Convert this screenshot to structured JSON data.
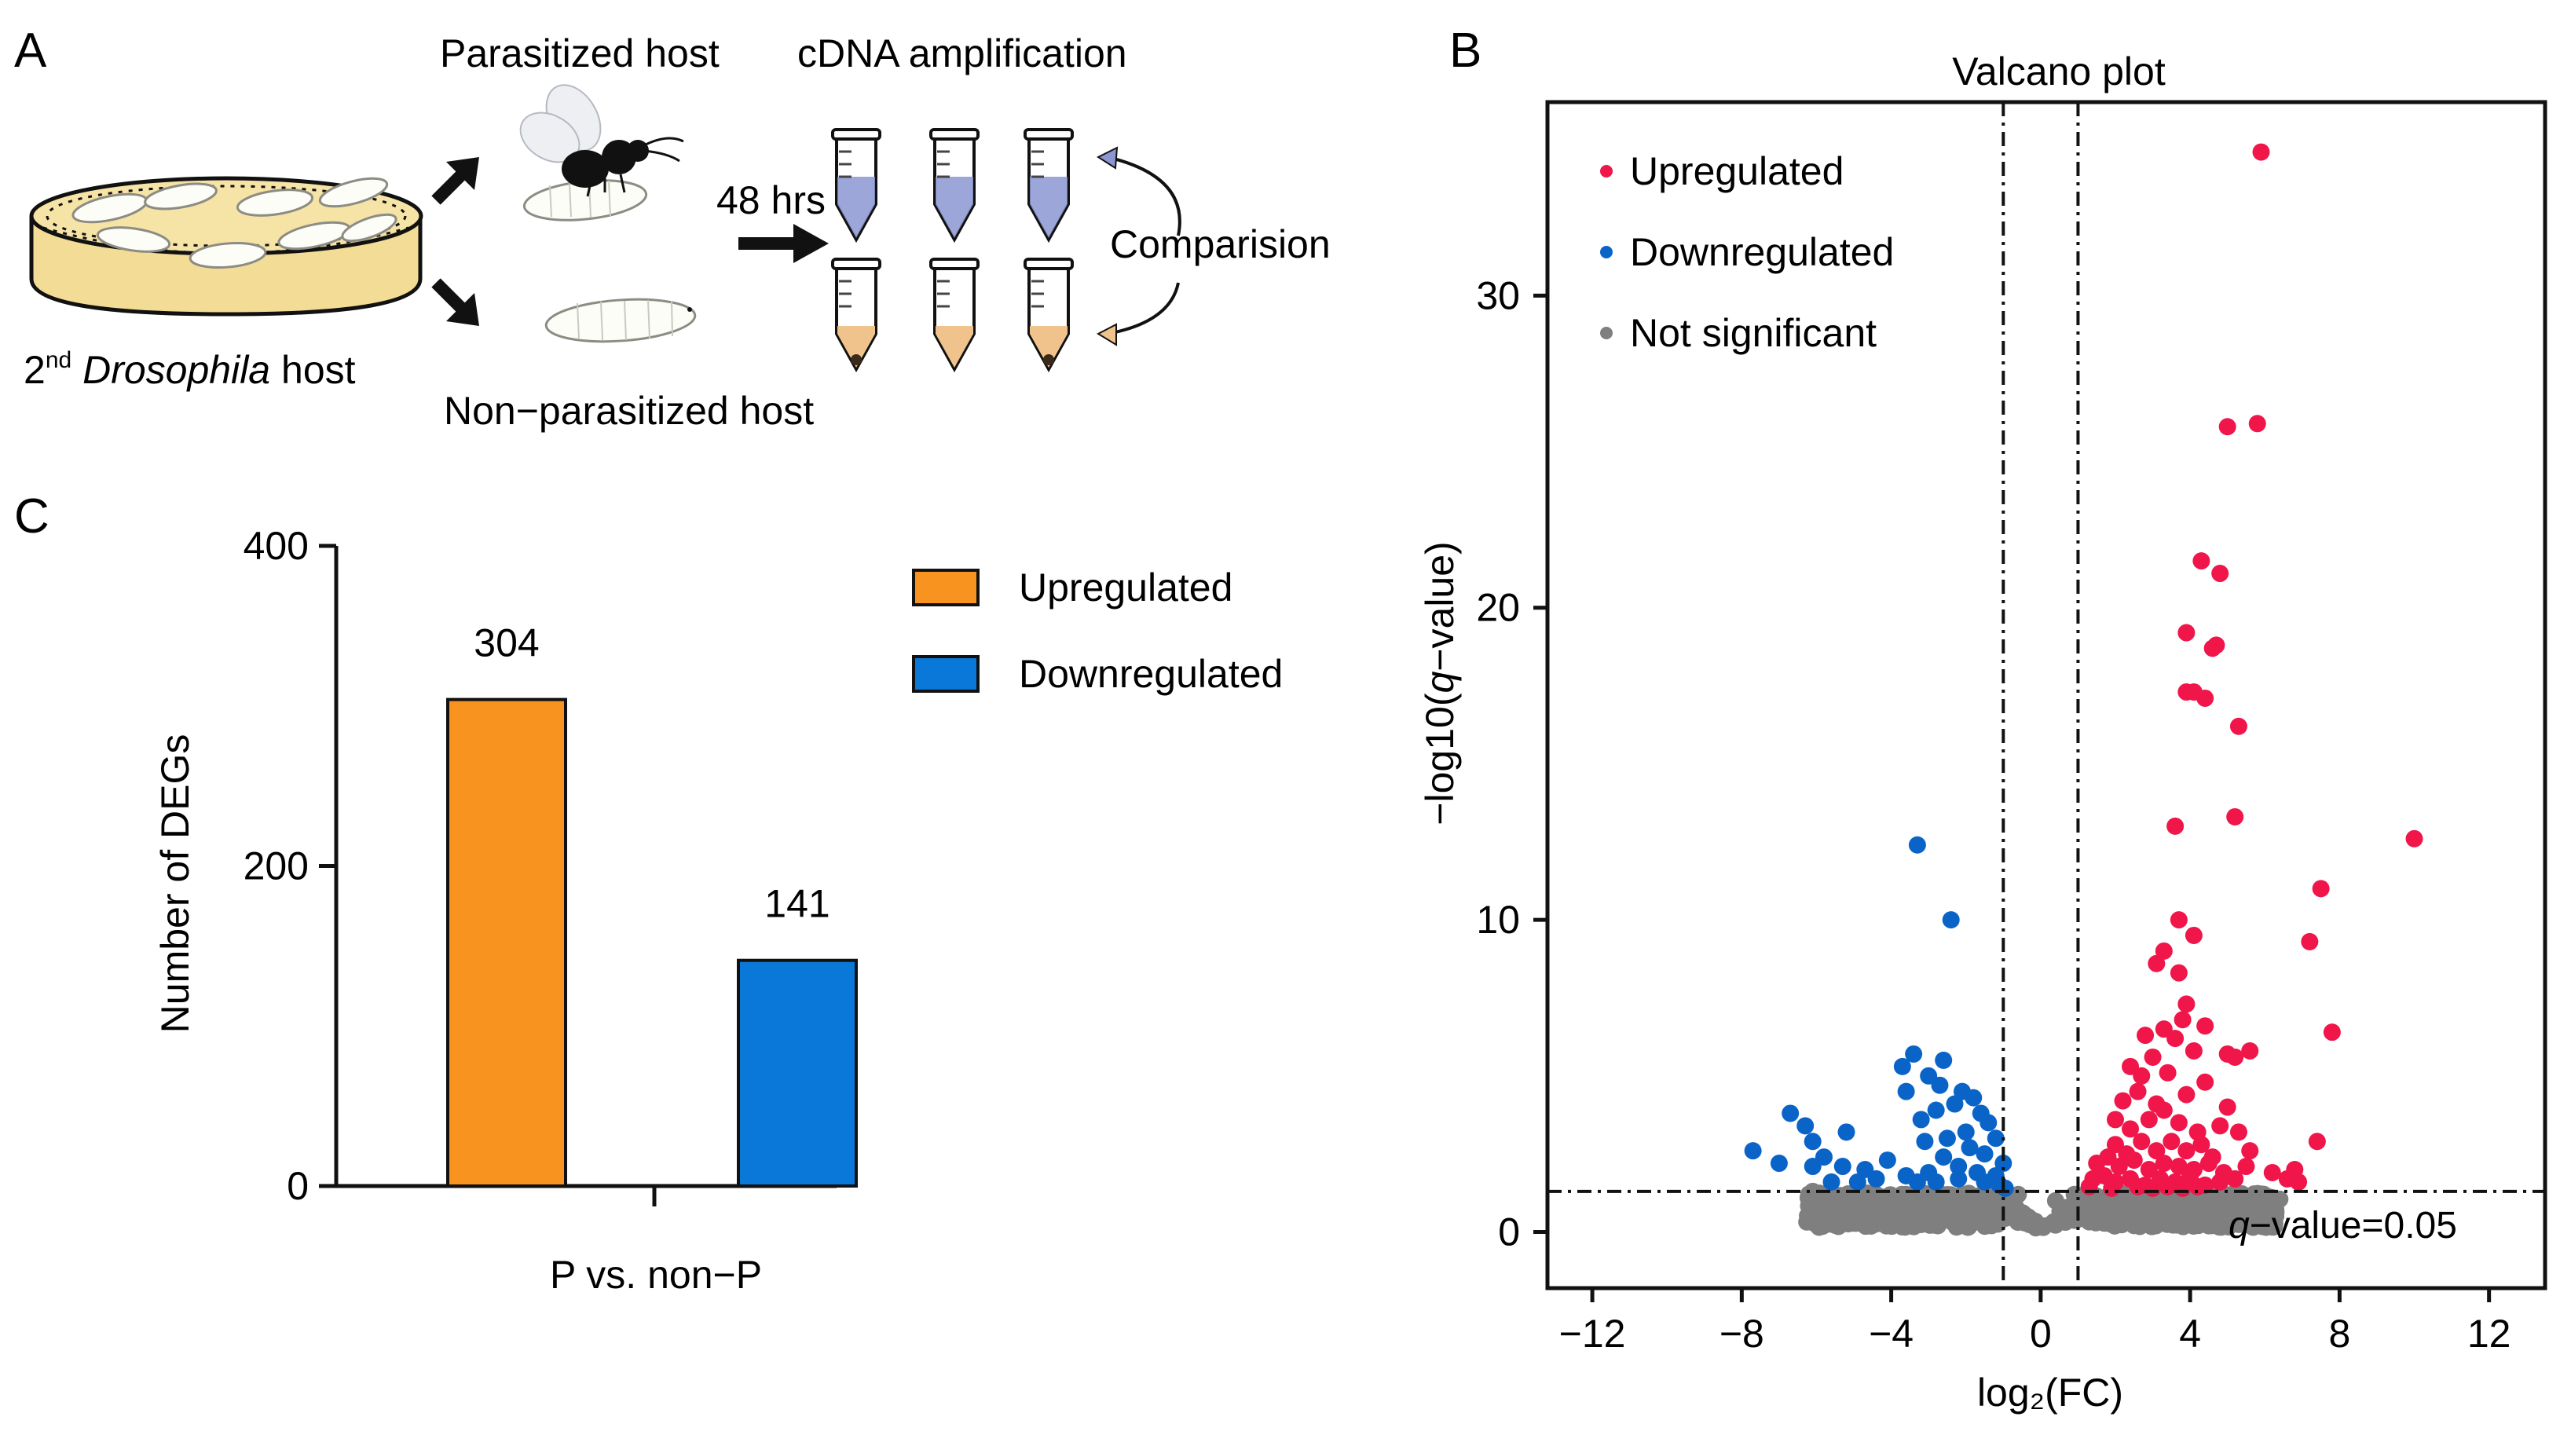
{
  "panel_a": {
    "label": "A",
    "parasitized_host": "Parasitized host",
    "cdna_amplification": "cDNA amplification",
    "duration": "48 hrs",
    "comparison": "Comparision",
    "host_prefix": "2",
    "host_superscript": "nd",
    "host_genus": "Drosophila",
    "host_suffix": "host",
    "non_parasitized_host": "Non−parasitized host"
  },
  "chart_data": [
    {
      "id": "panel-c",
      "panel_label": "C",
      "type": "bar",
      "title": "",
      "xlabel": "P vs. non−P",
      "ylabel": "Number of DEGs",
      "ylim": [
        0,
        400
      ],
      "yticks": [
        0,
        200,
        400
      ],
      "grid": false,
      "legend_position": "top-right",
      "categories": [
        "Upregulated",
        "Downregulated"
      ],
      "values": [
        304,
        141
      ],
      "colors": [
        "#F7931E",
        "#0A78D8"
      ],
      "data_labels": [
        "304",
        "141"
      ]
    },
    {
      "id": "panel-b",
      "panel_label": "B",
      "type": "scatter",
      "title": "Valcano plot",
      "xlabel": "log₂(FC)",
      "ylabel_prefix": "−log10(",
      "ylabel_italic": "q",
      "ylabel_suffix": "−value)",
      "xlim": [
        -13.2,
        13.5
      ],
      "ylim": [
        -1.8,
        36.2
      ],
      "xticks": [
        -12,
        -8,
        -4,
        0,
        4,
        8,
        12
      ],
      "xtick_labels": [
        "−12",
        "−8",
        "−4",
        "0",
        "4",
        "8",
        "12"
      ],
      "yticks": [
        0,
        10,
        20,
        30
      ],
      "grid": false,
      "legend_position": "top-left",
      "fc_thresholds": [
        -1,
        1
      ],
      "q_threshold_log": 1.3,
      "threshold_label_italic": "q",
      "threshold_label_rest": "−value=0.05",
      "series": [
        {
          "name": "Upregulated",
          "color": "#F0164A",
          "points": [
            [
              5.9,
              34.6
            ],
            [
              5.8,
              25.9
            ],
            [
              5.0,
              25.8
            ],
            [
              4.3,
              21.5
            ],
            [
              4.8,
              21.1
            ],
            [
              3.9,
              19.2
            ],
            [
              4.6,
              18.7
            ],
            [
              4.7,
              18.8
            ],
            [
              3.9,
              17.3
            ],
            [
              4.1,
              17.3
            ],
            [
              4.4,
              17.1
            ],
            [
              5.3,
              16.2
            ],
            [
              5.2,
              13.3
            ],
            [
              3.6,
              13.0
            ],
            [
              10.0,
              12.6
            ],
            [
              7.5,
              11.0
            ],
            [
              3.7,
              10.0
            ],
            [
              7.2,
              9.3
            ],
            [
              4.1,
              9.5
            ],
            [
              3.3,
              9.0
            ],
            [
              3.1,
              8.6
            ],
            [
              3.7,
              8.3
            ],
            [
              3.9,
              7.3
            ],
            [
              3.8,
              6.8
            ],
            [
              7.8,
              6.4
            ],
            [
              3.3,
              6.5
            ],
            [
              3.6,
              6.2
            ],
            [
              2.8,
              6.3
            ],
            [
              4.4,
              6.6
            ],
            [
              5.6,
              5.8
            ],
            [
              5.2,
              5.6
            ],
            [
              5.0,
              5.7
            ],
            [
              4.1,
              5.8
            ],
            [
              3.0,
              5.6
            ],
            [
              2.4,
              5.3
            ],
            [
              2.7,
              5.0
            ],
            [
              3.4,
              5.1
            ],
            [
              4.4,
              4.8
            ],
            [
              3.9,
              4.4
            ],
            [
              5.0,
              4.0
            ],
            [
              2.2,
              4.2
            ],
            [
              2.6,
              4.5
            ],
            [
              3.1,
              4.1
            ],
            [
              2.0,
              3.6
            ],
            [
              2.4,
              3.3
            ],
            [
              2.9,
              3.6
            ],
            [
              3.3,
              3.9
            ],
            [
              3.7,
              3.5
            ],
            [
              4.2,
              3.2
            ],
            [
              4.8,
              3.4
            ],
            [
              5.3,
              3.2
            ],
            [
              2.0,
              2.8
            ],
            [
              2.3,
              2.5
            ],
            [
              2.7,
              2.9
            ],
            [
              3.1,
              2.6
            ],
            [
              3.5,
              2.9
            ],
            [
              3.9,
              2.6
            ],
            [
              4.3,
              2.8
            ],
            [
              4.6,
              2.4
            ],
            [
              5.6,
              2.6
            ],
            [
              1.5,
              2.2
            ],
            [
              1.8,
              2.4
            ],
            [
              2.1,
              2.1
            ],
            [
              2.5,
              2.3
            ],
            [
              2.9,
              2.0
            ],
            [
              3.3,
              2.2
            ],
            [
              3.7,
              2.1
            ],
            [
              4.1,
              2.0
            ],
            [
              4.5,
              2.2
            ],
            [
              4.9,
              1.9
            ],
            [
              5.5,
              2.1
            ],
            [
              1.4,
              1.7
            ],
            [
              1.7,
              1.8
            ],
            [
              2.0,
              1.6
            ],
            [
              2.4,
              1.7
            ],
            [
              2.8,
              1.5
            ],
            [
              3.2,
              1.7
            ],
            [
              3.6,
              1.6
            ],
            [
              4.0,
              1.8
            ],
            [
              4.4,
              1.5
            ],
            [
              4.8,
              1.6
            ],
            [
              5.2,
              1.7
            ],
            [
              6.2,
              1.9
            ],
            [
              6.6,
              1.7
            ],
            [
              6.8,
              2.0
            ],
            [
              6.9,
              1.6
            ],
            [
              7.4,
              2.9
            ],
            [
              1.3,
              1.45
            ],
            [
              1.9,
              1.4
            ],
            [
              2.6,
              1.45
            ],
            [
              3.0,
              1.4
            ],
            [
              3.4,
              1.45
            ],
            [
              3.8,
              1.4
            ],
            [
              4.2,
              1.45
            ]
          ]
        },
        {
          "name": "Downregulated",
          "color": "#0A64C8",
          "points": [
            [
              -3.3,
              12.4
            ],
            [
              -2.4,
              10.0
            ],
            [
              -3.4,
              5.7
            ],
            [
              -2.6,
              5.5
            ],
            [
              -3.7,
              5.3
            ],
            [
              -3.0,
              5.0
            ],
            [
              -2.1,
              4.5
            ],
            [
              -2.7,
              4.7
            ],
            [
              -1.8,
              4.3
            ],
            [
              -3.6,
              4.5
            ],
            [
              -2.3,
              4.1
            ],
            [
              -1.6,
              3.8
            ],
            [
              -2.8,
              3.9
            ],
            [
              -3.2,
              3.6
            ],
            [
              -6.7,
              3.8
            ],
            [
              -6.3,
              3.4
            ],
            [
              -5.2,
              3.2
            ],
            [
              -1.4,
              3.5
            ],
            [
              -2.0,
              3.2
            ],
            [
              -2.5,
              3.0
            ],
            [
              -3.1,
              2.9
            ],
            [
              -1.2,
              3.0
            ],
            [
              -1.9,
              2.7
            ],
            [
              -2.6,
              2.4
            ],
            [
              -1.5,
              2.5
            ],
            [
              -7.7,
              2.6
            ],
            [
              -6.1,
              2.9
            ],
            [
              -5.8,
              2.4
            ],
            [
              -4.1,
              2.3
            ],
            [
              -5.3,
              2.1
            ],
            [
              -6.1,
              2.1
            ],
            [
              -7.0,
              2.2
            ],
            [
              -4.7,
              2.0
            ],
            [
              -3.0,
              1.9
            ],
            [
              -3.6,
              1.8
            ],
            [
              -2.2,
              2.1
            ],
            [
              -1.7,
              1.9
            ],
            [
              -1.2,
              1.8
            ],
            [
              -4.4,
              1.7
            ],
            [
              -4.9,
              1.6
            ],
            [
              -3.3,
              1.6
            ],
            [
              -2.8,
              1.6
            ],
            [
              -2.2,
              1.7
            ],
            [
              -1.5,
              1.6
            ],
            [
              -1.1,
              1.5
            ],
            [
              -5.6,
              1.6
            ],
            [
              -1.0,
              2.2
            ],
            [
              -0.95,
              1.4
            ]
          ]
        }
      ],
      "not_significant": {
        "name": "Not significant",
        "color": "#7F7F7F",
        "outliers": [
          [
            -6.1,
            1.3
          ],
          [
            -5.6,
            1.15
          ],
          [
            -5.1,
            1.2
          ],
          [
            -4.6,
            1.15
          ],
          [
            -4.1,
            1.1
          ],
          [
            -3.6,
            1.2
          ],
          [
            -3.1,
            1.15
          ],
          [
            -2.6,
            1.1
          ],
          [
            -2.1,
            1.2
          ],
          [
            -1.6,
            1.15
          ],
          [
            -1.1,
            1.1
          ],
          [
            -0.6,
            1.2
          ],
          [
            0.0,
            0.2
          ],
          [
            0.4,
            1.0
          ],
          [
            0.9,
            1.2
          ],
          [
            1.4,
            1.15
          ],
          [
            1.9,
            1.1
          ],
          [
            2.4,
            1.2
          ],
          [
            2.9,
            1.15
          ],
          [
            3.4,
            1.1
          ],
          [
            3.9,
            1.2
          ],
          [
            4.4,
            1.15
          ],
          [
            4.9,
            1.1
          ],
          [
            5.4,
            1.2
          ],
          [
            5.9,
            1.15
          ],
          [
            6.4,
            1.05
          ],
          [
            -5.8,
            0.7
          ],
          [
            -4.8,
            0.6
          ],
          [
            -3.8,
            0.8
          ],
          [
            -2.8,
            0.6
          ],
          [
            -1.8,
            0.7
          ],
          [
            -0.8,
            0.6
          ],
          [
            0.8,
            0.7
          ],
          [
            1.8,
            0.6
          ],
          [
            2.8,
            0.7
          ],
          [
            3.8,
            0.6
          ],
          [
            4.8,
            0.7
          ],
          [
            5.8,
            0.6
          ],
          [
            -3.5,
            0.3
          ],
          [
            -2.2,
            0.25
          ],
          [
            2.2,
            0.3
          ],
          [
            3.5,
            0.25
          ]
        ]
      }
    }
  ]
}
